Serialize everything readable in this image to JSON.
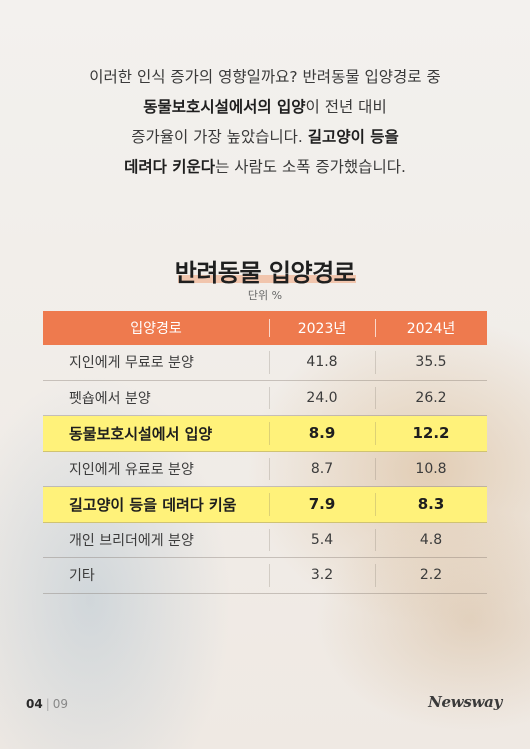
{
  "intro": {
    "line1": "이러한 인식 증가의 영향일까요? 반려동물 입양경로 중",
    "line2_bold": "동물보호시설에서의 입양",
    "line2_rest": "이 전년 대비",
    "line3_rest": "증가율이 가장 높았습니다. ",
    "line3_bold": "길고양이 등을",
    "line4_bold": "데려다 키운다",
    "line4_rest": "는 사람도 소폭 증가했습니다."
  },
  "table": {
    "title": "반려동물 입양경로",
    "unit": "단위 %",
    "headers": [
      "입양경로",
      "2023년",
      "2024년"
    ],
    "rows": [
      {
        "label": "지인에게 무료로 분양",
        "y2023": "41.8",
        "y2024": "35.5"
      },
      {
        "label": "펫숍에서 분양",
        "y2023": "24.0",
        "y2024": "26.2"
      },
      {
        "label": "동물보호시설에서 입양",
        "y2023": "8.9",
        "y2024": "12.2"
      },
      {
        "label": "지인에게 유료로 분양",
        "y2023": "8.7",
        "y2024": "10.8"
      },
      {
        "label": "길고양이 등을 데려다 키움",
        "y2023": "7.9",
        "y2024": "8.3"
      },
      {
        "label": "개인 브리더에게 분양",
        "y2023": "5.4",
        "y2024": "4.8"
      },
      {
        "label": "기타",
        "y2023": "3.2",
        "y2024": "2.2"
      }
    ],
    "highlight_color": "#fff27a",
    "header_color": "#ee7a4e"
  },
  "footer": {
    "page_current": "04",
    "page_total": "09",
    "logo": "Newsway"
  }
}
